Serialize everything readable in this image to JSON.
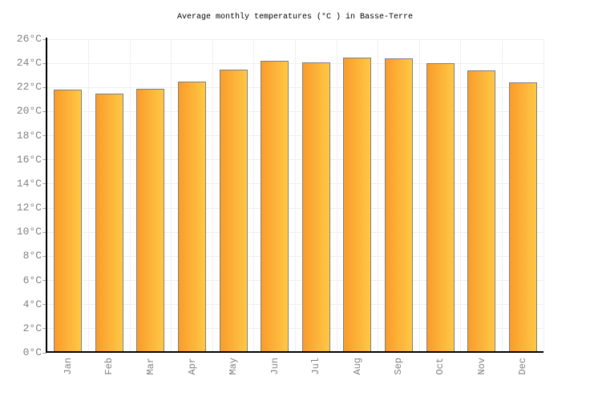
{
  "title": "Average monthly temperatures (°C ) in Basse-Terre",
  "chart_data": {
    "type": "bar",
    "title": "Average monthly temperatures (°C ) in Basse-Terre",
    "categories": [
      "Jan",
      "Feb",
      "Mar",
      "Apr",
      "May",
      "Jun",
      "Jul",
      "Aug",
      "Sep",
      "Oct",
      "Nov",
      "Dec"
    ],
    "values": [
      21.8,
      21.5,
      21.9,
      22.5,
      23.5,
      24.2,
      24.1,
      24.5,
      24.4,
      24.0,
      23.4,
      22.4
    ],
    "unit": "°C",
    "xlabel": "",
    "ylabel": "",
    "ylim": [
      0,
      26
    ],
    "ytick_step": 2,
    "ytick_labels": [
      "0°C",
      "2°C",
      "4°C",
      "6°C",
      "8°C",
      "10°C",
      "12°C",
      "14°C",
      "16°C",
      "18°C",
      "20°C",
      "22°C",
      "24°C",
      "26°C"
    ],
    "grid": true,
    "legend_position": "none",
    "x_label_rotation_deg": -90
  },
  "colors": {
    "background": "#ffffff",
    "bar_gradient_left": "#fa9c2b",
    "bar_gradient_right": "#ffc845",
    "bar_border": "#7f7f7f",
    "gridline": "#efefef",
    "axis": "#000000",
    "tick_label": "#808080",
    "title_text": "#000000"
  }
}
